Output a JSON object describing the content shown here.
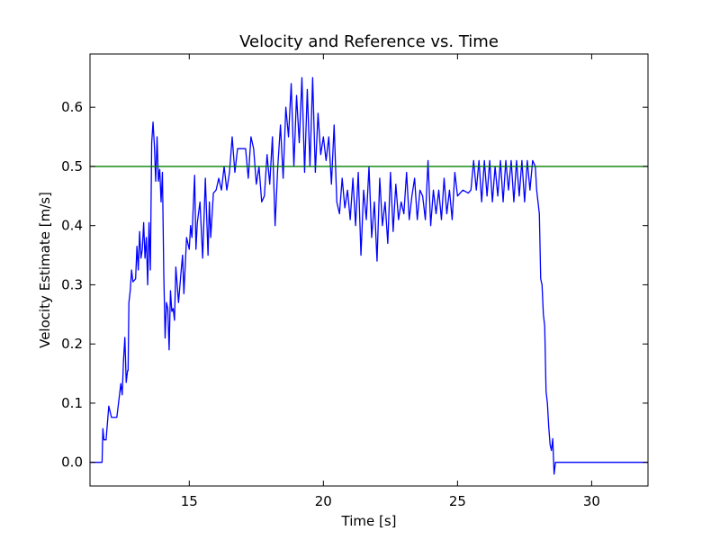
{
  "chart_data": {
    "type": "line",
    "title": "Velocity and Reference vs. Time",
    "xlabel": "Time [s]",
    "ylabel": "Velocity Estimate [m/s]",
    "xlim": [
      11.3,
      32.1
    ],
    "ylim": [
      -0.04,
      0.69
    ],
    "x_ticks": [
      15,
      20,
      25,
      30
    ],
    "y_ticks": [
      0.0,
      0.1,
      0.2,
      0.3,
      0.4,
      0.5,
      0.6
    ],
    "grid": false,
    "series": [
      {
        "color": "#0000ff",
        "x": [
          11.3,
          11.75,
          11.78,
          11.82,
          11.86,
          11.9,
          12.0,
          12.1,
          12.15,
          12.3,
          12.45,
          12.5,
          12.55,
          12.6,
          12.65,
          12.7,
          12.72,
          12.75,
          12.8,
          12.85,
          12.9,
          13.0,
          13.05,
          13.1,
          13.15,
          13.2,
          13.25,
          13.3,
          13.35,
          13.4,
          13.45,
          13.5,
          13.55,
          13.6,
          13.65,
          13.7,
          13.75,
          13.8,
          13.85,
          13.9,
          13.95,
          14.0,
          14.05,
          14.1,
          14.15,
          14.2,
          14.25,
          14.3,
          14.35,
          14.4,
          14.45,
          14.5,
          14.6,
          14.7,
          14.75,
          14.8,
          14.9,
          15.0,
          15.05,
          15.1,
          15.2,
          15.25,
          15.3,
          15.4,
          15.5,
          15.6,
          15.7,
          15.75,
          15.8,
          15.9,
          16.0,
          16.1,
          16.2,
          16.3,
          16.4,
          16.5,
          16.6,
          16.7,
          16.8,
          17.0,
          17.1,
          17.2,
          17.3,
          17.4,
          17.5,
          17.6,
          17.7,
          17.8,
          17.9,
          18.0,
          18.1,
          18.2,
          18.3,
          18.4,
          18.5,
          18.6,
          18.7,
          18.8,
          18.9,
          19.0,
          19.1,
          19.2,
          19.3,
          19.4,
          19.5,
          19.6,
          19.7,
          19.8,
          19.9,
          20.0,
          20.1,
          20.2,
          20.3,
          20.4,
          20.5,
          20.6,
          20.7,
          20.8,
          20.9,
          21.0,
          21.1,
          21.2,
          21.3,
          21.4,
          21.5,
          21.6,
          21.7,
          21.8,
          21.9,
          22.0,
          22.1,
          22.2,
          22.3,
          22.4,
          22.5,
          22.6,
          22.7,
          22.8,
          22.9,
          23.0,
          23.1,
          23.2,
          23.3,
          23.4,
          23.5,
          23.6,
          23.7,
          23.8,
          23.9,
          24.0,
          24.1,
          24.2,
          24.3,
          24.4,
          24.5,
          24.6,
          24.7,
          24.8,
          24.9,
          25.0,
          25.2,
          25.4,
          25.5,
          25.6,
          25.7,
          25.8,
          25.9,
          26.0,
          26.1,
          26.2,
          26.3,
          26.4,
          26.5,
          26.6,
          26.7,
          26.8,
          26.9,
          27.0,
          27.1,
          27.2,
          27.3,
          27.4,
          27.5,
          27.6,
          27.7,
          27.8,
          27.9,
          27.95,
          28.0,
          28.05,
          28.1,
          28.15,
          28.2,
          28.25,
          28.3,
          28.35,
          28.4,
          28.45,
          28.5,
          28.55,
          28.6,
          28.65,
          28.7,
          32.1
        ],
        "y": [
          0.0,
          0.0,
          0.057,
          0.038,
          0.038,
          0.038,
          0.095,
          0.076,
          0.076,
          0.076,
          0.133,
          0.114,
          0.173,
          0.211,
          0.135,
          0.155,
          0.155,
          0.27,
          0.29,
          0.325,
          0.305,
          0.31,
          0.365,
          0.325,
          0.39,
          0.345,
          0.36,
          0.405,
          0.345,
          0.38,
          0.3,
          0.405,
          0.325,
          0.54,
          0.575,
          0.535,
          0.475,
          0.55,
          0.475,
          0.495,
          0.44,
          0.49,
          0.32,
          0.21,
          0.27,
          0.26,
          0.19,
          0.29,
          0.255,
          0.26,
          0.24,
          0.33,
          0.27,
          0.325,
          0.35,
          0.285,
          0.38,
          0.36,
          0.4,
          0.38,
          0.485,
          0.36,
          0.405,
          0.44,
          0.345,
          0.48,
          0.35,
          0.44,
          0.38,
          0.455,
          0.46,
          0.48,
          0.46,
          0.5,
          0.46,
          0.49,
          0.55,
          0.49,
          0.53,
          0.53,
          0.53,
          0.48,
          0.55,
          0.53,
          0.47,
          0.5,
          0.44,
          0.45,
          0.52,
          0.47,
          0.55,
          0.4,
          0.5,
          0.57,
          0.48,
          0.6,
          0.55,
          0.64,
          0.5,
          0.62,
          0.54,
          0.65,
          0.49,
          0.63,
          0.5,
          0.65,
          0.49,
          0.59,
          0.52,
          0.55,
          0.51,
          0.55,
          0.47,
          0.57,
          0.44,
          0.42,
          0.48,
          0.43,
          0.46,
          0.41,
          0.48,
          0.4,
          0.49,
          0.35,
          0.46,
          0.41,
          0.5,
          0.38,
          0.44,
          0.34,
          0.48,
          0.4,
          0.44,
          0.37,
          0.49,
          0.39,
          0.47,
          0.41,
          0.44,
          0.42,
          0.49,
          0.41,
          0.45,
          0.48,
          0.41,
          0.46,
          0.45,
          0.41,
          0.51,
          0.4,
          0.46,
          0.42,
          0.46,
          0.41,
          0.48,
          0.42,
          0.46,
          0.41,
          0.49,
          0.45,
          0.46,
          0.455,
          0.46,
          0.51,
          0.46,
          0.51,
          0.44,
          0.51,
          0.45,
          0.51,
          0.44,
          0.5,
          0.45,
          0.51,
          0.44,
          0.51,
          0.46,
          0.51,
          0.44,
          0.51,
          0.45,
          0.51,
          0.44,
          0.51,
          0.46,
          0.51,
          0.5,
          0.46,
          0.44,
          0.42,
          0.31,
          0.3,
          0.25,
          0.23,
          0.12,
          0.1,
          0.06,
          0.03,
          0.02,
          0.04,
          -0.02,
          0.0,
          0.0,
          0.0
        ]
      },
      {
        "color": "#008000",
        "x": [
          11.3,
          32.1
        ],
        "y": [
          0.5,
          0.5
        ]
      }
    ]
  }
}
